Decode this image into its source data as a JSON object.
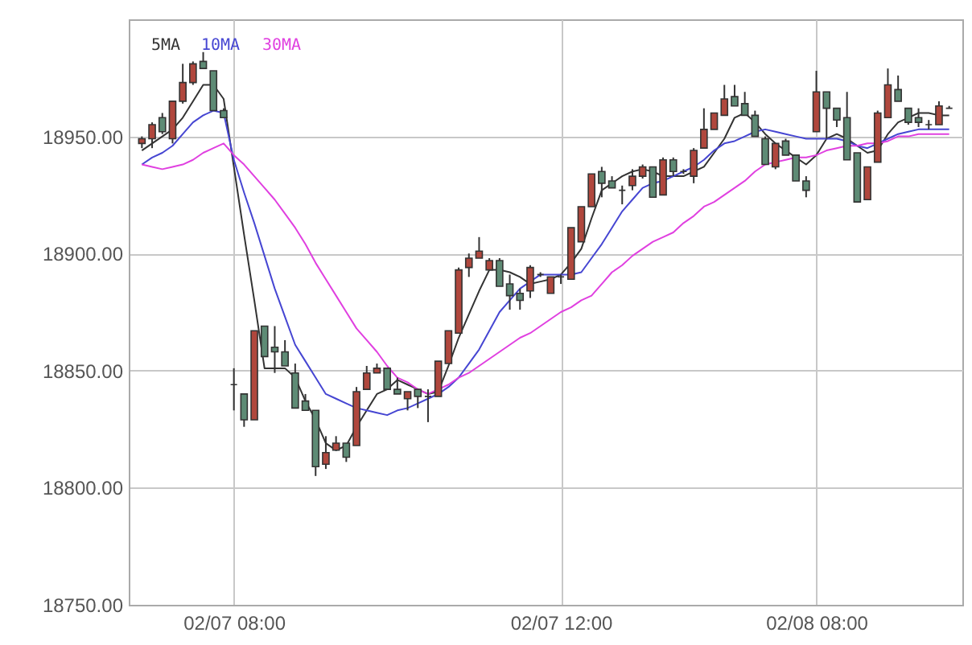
{
  "chart_data": {
    "type": "candlestick",
    "categories": [
      null,
      null,
      null,
      null,
      null,
      null,
      null,
      null,
      null,
      "02/07 08:00",
      null,
      null,
      null,
      null,
      null,
      null,
      null,
      null,
      null,
      null,
      null,
      null,
      null,
      null,
      null,
      null,
      null,
      null,
      null,
      null,
      null,
      null,
      null,
      null,
      null,
      null,
      null,
      null,
      null,
      null,
      null,
      "02/07 12:00",
      null,
      null,
      null,
      null,
      null,
      null,
      null,
      null,
      null,
      null,
      null,
      null,
      null,
      null,
      null,
      null,
      null,
      null,
      null,
      null,
      null,
      null,
      null,
      null,
      "02/08 08:00",
      null,
      null,
      null,
      null,
      null,
      null,
      null,
      null,
      null,
      null,
      null,
      null,
      null
    ],
    "ohlc": [
      [
        18947,
        18950,
        18945,
        18949
      ],
      [
        18949,
        18956,
        18945,
        18955
      ],
      [
        18958,
        18960,
        18951,
        18952
      ],
      [
        18949,
        18965,
        18947,
        18965
      ],
      [
        18965,
        18981,
        18964,
        18973
      ],
      [
        18973,
        18982,
        18972,
        18981
      ],
      [
        18982,
        18986,
        18979,
        18979
      ],
      [
        18978,
        18978,
        18961,
        18961
      ],
      [
        18961,
        18962,
        18958,
        18958
      ],
      [
        18844,
        18851,
        18833,
        18844
      ],
      [
        18840,
        18840,
        18826,
        18829
      ],
      [
        18829,
        18867,
        18829,
        18867
      ],
      [
        18869,
        18869,
        18856,
        18856
      ],
      [
        18860,
        18869,
        18849,
        18858
      ],
      [
        18858,
        18863,
        18852,
        18852
      ],
      [
        18849,
        18853,
        18834,
        18834
      ],
      [
        18837,
        18840,
        18833,
        18833
      ],
      [
        18833,
        18833,
        18805,
        18809
      ],
      [
        18810,
        18822,
        18808,
        18815
      ],
      [
        18816,
        18822,
        18816,
        18819
      ],
      [
        18819,
        18819,
        18811,
        18813
      ],
      [
        18818,
        18843,
        18818,
        18841
      ],
      [
        18842,
        18852,
        18842,
        18849
      ],
      [
        18849,
        18853,
        18849,
        18851
      ],
      [
        18851,
        18851,
        18842,
        18842
      ],
      [
        18842,
        18847,
        18840,
        18840
      ],
      [
        18838,
        18841,
        18833,
        18841
      ],
      [
        18842,
        18842,
        18834,
        18839
      ],
      [
        18839,
        18842,
        18828,
        18839
      ],
      [
        18839,
        18854,
        18839,
        18854
      ],
      [
        18853,
        18867,
        18853,
        18867
      ],
      [
        18866,
        18894,
        18866,
        18893
      ],
      [
        18894,
        18900,
        18890,
        18898
      ],
      [
        18898,
        18907,
        18898,
        18901
      ],
      [
        18893,
        18898,
        18893,
        18897
      ],
      [
        18897,
        18898,
        18886,
        18886
      ],
      [
        18887,
        18891,
        18876,
        18882
      ],
      [
        18883,
        18885,
        18876,
        18880
      ],
      [
        18884,
        18895,
        18881,
        18894
      ],
      [
        18891,
        18892,
        18890,
        18891
      ],
      [
        18883,
        18890,
        18883,
        18890
      ],
      [
        18890,
        18891,
        18887,
        18890
      ],
      [
        18889,
        18911,
        18889,
        18911
      ],
      [
        18905,
        18920,
        18905,
        18920
      ],
      [
        18920,
        18934,
        18920,
        18934
      ],
      [
        18935,
        18937,
        18924,
        18930
      ],
      [
        18931,
        18933,
        18928,
        18928
      ],
      [
        18927,
        18929,
        18921,
        18927
      ],
      [
        18929,
        18936,
        18927,
        18933
      ],
      [
        18933,
        18938,
        18932,
        18937
      ],
      [
        18937,
        18937,
        18924,
        18924
      ],
      [
        18925,
        18941,
        18925,
        18940
      ],
      [
        18940,
        18941,
        18933,
        18935
      ],
      [
        18935,
        18936,
        18934,
        18935
      ],
      [
        18933,
        18945,
        18930,
        18944
      ],
      [
        18945,
        18962,
        18945,
        18953
      ],
      [
        18953,
        18960,
        18953,
        18960
      ],
      [
        18959,
        18972,
        18959,
        18966
      ],
      [
        18967,
        18972,
        18963,
        18963
      ],
      [
        18964,
        18969,
        18959,
        18959
      ],
      [
        18959,
        18961,
        18950,
        18950
      ],
      [
        18949,
        18950,
        18938,
        18938
      ],
      [
        18937,
        18947,
        18936,
        18947
      ],
      [
        18948,
        18949,
        18942,
        18942
      ],
      [
        18942,
        18942,
        18931,
        18931
      ],
      [
        18931,
        18933,
        18924,
        18927
      ],
      [
        18952,
        18978,
        18952,
        18969
      ],
      [
        18969,
        18969,
        18949,
        18962
      ],
      [
        18962,
        18962,
        18954,
        18957
      ],
      [
        18958,
        18969,
        18940,
        18940
      ],
      [
        18943,
        18943,
        18922,
        18922
      ],
      [
        18923,
        18937,
        18923,
        18937
      ],
      [
        18939,
        18961,
        18939,
        18960
      ],
      [
        18958,
        18979,
        18958,
        18972
      ],
      [
        18970,
        18976,
        18965,
        18965
      ],
      [
        18962,
        18962,
        18955,
        18956
      ],
      [
        18958,
        18962,
        18954,
        18956
      ],
      [
        18955,
        18957,
        18953,
        18955
      ],
      [
        18955,
        18965,
        18955,
        18963
      ],
      [
        18962,
        18963,
        18962,
        18962
      ]
    ],
    "colors": [
      "#b0473d",
      "#b0473d",
      "#5e8b75",
      "#b0473d",
      "#b0473d",
      "#b0473d",
      "#5e8b75",
      "#5e8b75",
      "#5e8b75",
      "#333333",
      "#5e8b75",
      "#b0473d",
      "#5e8b75",
      "#5e8b75",
      "#5e8b75",
      "#5e8b75",
      "#5e8b75",
      "#5e8b75",
      "#b0473d",
      "#b0473d",
      "#5e8b75",
      "#b0473d",
      "#b0473d",
      "#b0473d",
      "#5e8b75",
      "#5e8b75",
      "#b0473d",
      "#5e8b75",
      "#333333",
      "#b0473d",
      "#b0473d",
      "#b0473d",
      "#b0473d",
      "#b0473d",
      "#b0473d",
      "#5e8b75",
      "#5e8b75",
      "#5e8b75",
      "#b0473d",
      "#333333",
      "#b0473d",
      "#333333",
      "#b0473d",
      "#b0473d",
      "#b0473d",
      "#5e8b75",
      "#5e8b75",
      "#333333",
      "#b0473d",
      "#b0473d",
      "#5e8b75",
      "#b0473d",
      "#5e8b75",
      "#333333",
      "#b0473d",
      "#b0473d",
      "#b0473d",
      "#b0473d",
      "#5e8b75",
      "#5e8b75",
      "#5e8b75",
      "#5e8b75",
      "#b0473d",
      "#5e8b75",
      "#5e8b75",
      "#5e8b75",
      "#b0473d",
      "#5e8b75",
      "#5e8b75",
      "#5e8b75",
      "#5e8b75",
      "#b0473d",
      "#b0473d",
      "#b0473d",
      "#5e8b75",
      "#5e8b75",
      "#5e8b75",
      "#333333",
      "#b0473d",
      "#333333"
    ],
    "series": [
      {
        "name": "5MA",
        "type": "line",
        "color": "#333333",
        "values": [
          18944,
          18947,
          18950,
          18953,
          18958,
          18965,
          18972,
          18972,
          18966,
          18937,
          18908,
          18880,
          18851,
          18851,
          18851,
          18847,
          18837,
          18829,
          18819,
          18816,
          18818,
          18826,
          18833,
          18840,
          18842,
          18846,
          18844,
          18842,
          18840,
          18841,
          18852,
          18864,
          18874,
          18884,
          18893,
          18893,
          18892,
          18890,
          18887,
          18888,
          18889,
          18891,
          18896,
          18902,
          18915,
          18927,
          18930,
          18933,
          18935,
          18936,
          18935,
          18933,
          18933,
          18933,
          18935,
          18937,
          18943,
          18949,
          18958,
          18960,
          18956,
          18951,
          18947,
          18944,
          18941,
          18938,
          18942,
          18949,
          18951,
          18949,
          18946,
          18943,
          18944,
          18951,
          18956,
          18958,
          18960,
          18960,
          18959,
          18959
        ]
      },
      {
        "name": "10MA",
        "type": "line",
        "color": "#4646d2",
        "values": [
          18938,
          18941,
          18943,
          18946,
          18951,
          18956,
          18959,
          18961,
          18960,
          18940,
          18926,
          18913,
          18899,
          18885,
          18873,
          18861,
          18854,
          18847,
          18840,
          18838,
          18836,
          18834,
          18833,
          18832,
          18831,
          18833,
          18834,
          18836,
          18838,
          18840,
          18843,
          18847,
          18853,
          18859,
          18867,
          18875,
          18880,
          18885,
          18888,
          18891,
          18891,
          18891,
          18891,
          18892,
          18898,
          18904,
          18911,
          18918,
          18923,
          18928,
          18930,
          18931,
          18933,
          18935,
          18937,
          18940,
          18944,
          18947,
          18948,
          18950,
          18952,
          18953,
          18952,
          18951,
          18950,
          18949,
          18949,
          18949,
          18949,
          18948,
          18946,
          18945,
          18947,
          18949,
          18951,
          18952,
          18953,
          18953,
          18953,
          18953
        ]
      },
      {
        "name": "30MA",
        "type": "line",
        "color": "#e040e0",
        "values": [
          18938,
          18937,
          18936,
          18937,
          18938,
          18940,
          18943,
          18945,
          18947,
          18942,
          18938,
          18933,
          18928,
          18923,
          18917,
          18911,
          18904,
          18896,
          18889,
          18882,
          18875,
          18868,
          18863,
          18858,
          18852,
          18847,
          18845,
          18842,
          18840,
          18842,
          18844,
          18847,
          18849,
          18852,
          18855,
          18858,
          18861,
          18864,
          18866,
          18869,
          18872,
          18875,
          18877,
          18880,
          18882,
          18887,
          18892,
          18895,
          18899,
          18902,
          18905,
          18907,
          18909,
          18913,
          18916,
          18920,
          18922,
          18925,
          18928,
          18931,
          18935,
          18938,
          18939,
          18940,
          18941,
          18941,
          18942,
          18944,
          18945,
          18946,
          18946,
          18947,
          18947,
          18948,
          18950,
          18950,
          18951,
          18951,
          18951,
          18951
        ]
      }
    ],
    "ylim": [
      18750,
      19000
    ],
    "yticks": [
      {
        "value": 18750,
        "label": "18750.00"
      },
      {
        "value": 18800,
        "label": "18800.00"
      },
      {
        "value": 18850,
        "label": "18850.00"
      },
      {
        "value": 18900,
        "label": "18900.00"
      },
      {
        "value": 18950,
        "label": "18950.00"
      }
    ],
    "grid": true,
    "legend": "top left",
    "marker": "none"
  }
}
